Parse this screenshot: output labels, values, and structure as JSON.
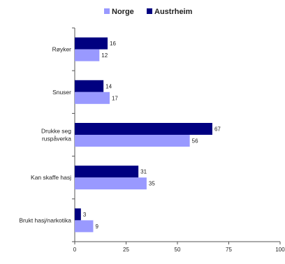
{
  "chart_data": {
    "type": "bar",
    "orientation": "horizontal",
    "categories": [
      [
        "Røyker"
      ],
      [
        "Snuser"
      ],
      [
        "Drukke seg",
        "ruspåverka"
      ],
      [
        "Kan skaffe hasj"
      ],
      [
        "Brukt hasj/narkotika"
      ]
    ],
    "series": [
      {
        "name": "Norge",
        "color": "#9999ff",
        "values": [
          12,
          17,
          56,
          35,
          9
        ]
      },
      {
        "name": "Austrheim",
        "color": "#000080",
        "values": [
          16,
          14,
          67,
          31,
          3
        ]
      }
    ],
    "xlim": [
      0,
      100
    ],
    "xticks": [
      "0",
      "25",
      "50",
      "75",
      "100"
    ],
    "xtick_values": [
      0,
      25,
      50,
      75,
      100
    ],
    "legend_position": "top-center",
    "grid": false,
    "title": "",
    "xlabel": "",
    "ylabel": ""
  }
}
